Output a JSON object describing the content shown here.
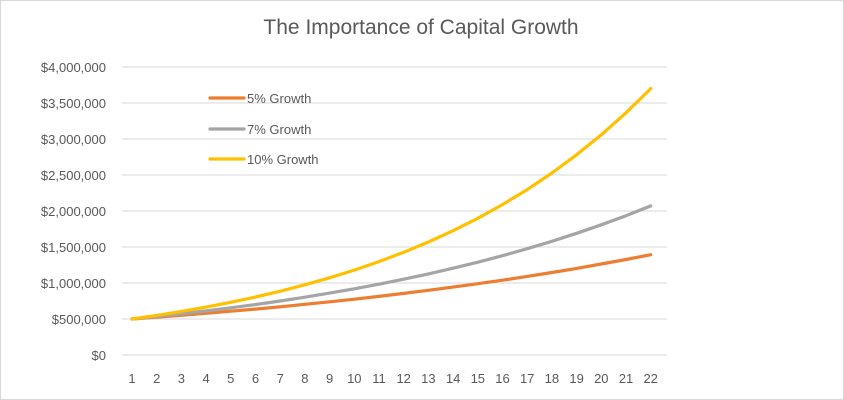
{
  "chart_data": {
    "type": "line",
    "title": "The Importance of Capital Growth",
    "xlabel": "",
    "ylabel": "",
    "categories": [
      "1",
      "2",
      "3",
      "4",
      "5",
      "6",
      "7",
      "8",
      "9",
      "10",
      "11",
      "12",
      "13",
      "14",
      "15",
      "16",
      "17",
      "18",
      "19",
      "20",
      "21",
      "22"
    ],
    "ylim": [
      0,
      4000000
    ],
    "y_ticks": [
      0,
      500000,
      1000000,
      1500000,
      2000000,
      2500000,
      3000000,
      3500000,
      4000000
    ],
    "y_tick_labels": [
      "$0",
      "$500,000",
      "$1,000,000",
      "$1,500,000",
      "$2,000,000",
      "$2,500,000",
      "$3,000,000",
      "$3,500,000",
      "$4,000,000"
    ],
    "grid": true,
    "legend_position": "top-left",
    "series": [
      {
        "name": "5% Growth",
        "color": "#ed7d31",
        "values": [
          500000,
          525000,
          551250,
          578813,
          607753,
          638141,
          670048,
          703550,
          738728,
          775664,
          814447,
          855170,
          897928,
          942825,
          989966,
          1039464,
          1091437,
          1146009,
          1203310,
          1263475,
          1326649,
          1392981
        ]
      },
      {
        "name": "7% Growth",
        "color": "#a5a5a5",
        "values": [
          500000,
          535000,
          572450,
          612522,
          655398,
          701276,
          750365,
          802891,
          859093,
          919230,
          983576,
          1052426,
          1126096,
          1204923,
          1289267,
          1379516,
          1476082,
          1579408,
          1689966,
          1808264,
          1934842,
          2070281
        ]
      },
      {
        "name": "10% Growth",
        "color": "#ffc000",
        "values": [
          500000,
          550000,
          605000,
          665500,
          732050,
          805255,
          885781,
          974359,
          1071794,
          1178974,
          1296871,
          1426558,
          1569214,
          1726135,
          1898749,
          2088624,
          2297486,
          2527235,
          2779958,
          3057954,
          3363749,
          3700124
        ]
      }
    ]
  }
}
